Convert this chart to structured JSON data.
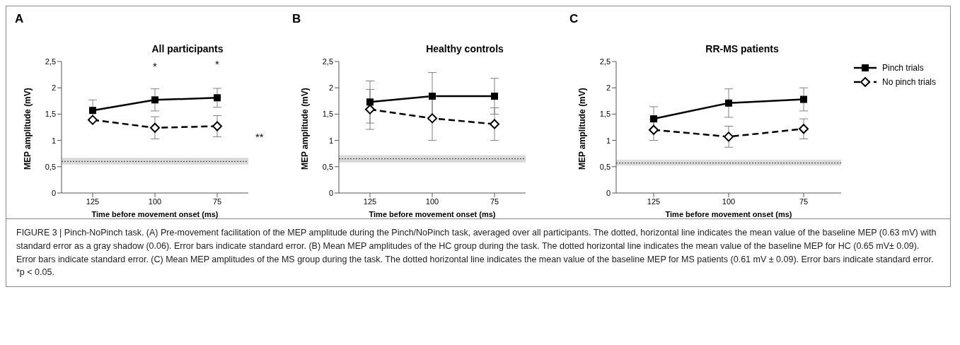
{
  "chart_data": [
    {
      "type": "line",
      "title": "All participants",
      "xlabel": "Time before movement onset (ms)",
      "ylabel": "MEP amplitude (mV)",
      "categories": [
        "125",
        "100",
        "75"
      ],
      "series": [
        {
          "color": "#000000",
          "marker": "square",
          "line_style": "solid",
          "values": [
            1.57,
            1.77,
            1.81
          ],
          "errors": [
            0.2,
            0.21,
            0.18
          ]
        },
        {
          "color": "#000000",
          "marker": "diamond",
          "line_style": "dashed",
          "values": [
            1.39,
            1.24,
            1.27
          ],
          "errors": [
            null,
            0.21,
            0.2
          ]
        }
      ],
      "ylim": [
        0,
        2.5
      ],
      "yticks": [
        {
          "value": 0,
          "label": "0"
        },
        {
          "value": 0.5,
          "label": "0,5"
        },
        {
          "value": 1,
          "label": "1"
        },
        {
          "value": 1.5,
          "label": "1,5"
        },
        {
          "value": 2,
          "label": "2"
        },
        {
          "value": 2.5,
          "label": "2,5"
        }
      ],
      "ref_lines": [
        {
          "axis": "y",
          "value": 0.6,
          "line_style": "dotted",
          "color": "#333333"
        }
      ],
      "bands": [
        {
          "axis": "y",
          "from": 0.54,
          "to": 0.67,
          "color": "#d9d9d9"
        }
      ],
      "annotations": [
        "A",
        {
          "text": "*",
          "x": "100",
          "y": 1.77
        },
        {
          "text": "*",
          "x": "75",
          "y": 1.81
        },
        "**"
      ]
    },
    {
      "type": "line",
      "title": "Healthy controls",
      "xlabel": "Time before movement onset (ms)",
      "ylabel": "MEP amplitude (mV)",
      "categories": [
        "125",
        "100",
        "75"
      ],
      "series": [
        {
          "color": "#000000",
          "marker": "square",
          "line_style": "solid",
          "values": [
            1.73,
            1.84,
            1.84
          ],
          "errors": [
            0.4,
            0.45,
            0.34
          ]
        },
        {
          "color": "#000000",
          "marker": "diamond",
          "line_style": "dashed",
          "values": [
            1.59,
            1.42,
            1.31
          ],
          "errors": [
            0.38,
            0.42,
            0.31
          ]
        }
      ],
      "ylim": [
        0,
        2.5
      ],
      "yticks": [
        {
          "value": 0,
          "label": "0"
        },
        {
          "value": 0.5,
          "label": "0,5"
        },
        {
          "value": 1,
          "label": "1"
        },
        {
          "value": 1.5,
          "label": "1,5"
        },
        {
          "value": 2,
          "label": "2"
        },
        {
          "value": 2.5,
          "label": "2,5"
        }
      ],
      "ref_lines": [
        {
          "axis": "y",
          "value": 0.65,
          "line_style": "dotted",
          "color": "#333333"
        }
      ],
      "bands": [
        {
          "axis": "y",
          "from": 0.58,
          "to": 0.72,
          "color": "#d9d9d9"
        }
      ],
      "annotations": [
        "B"
      ]
    },
    {
      "type": "line",
      "title": "RR-MS patients",
      "xlabel": "Time before movement onset (ms)",
      "ylabel": "MEP amplitude (mV)",
      "categories": [
        "125",
        "100",
        "75"
      ],
      "series": [
        {
          "name": "Pinch trials",
          "color": "#000000",
          "marker": "square",
          "line_style": "solid",
          "values": [
            1.41,
            1.71,
            1.78
          ],
          "errors": [
            0.23,
            0.27,
            0.22
          ]
        },
        {
          "name": "No pinch trials",
          "color": "#000000",
          "marker": "diamond",
          "line_style": "dashed",
          "values": [
            1.2,
            1.07,
            1.22
          ],
          "errors": [
            0.2,
            0.2,
            0.19
          ]
        }
      ],
      "ylim": [
        0,
        2.5
      ],
      "yticks": [
        {
          "value": 0,
          "label": "0"
        },
        {
          "value": 0.5,
          "label": "0,5"
        },
        {
          "value": 1,
          "label": "1"
        },
        {
          "value": 1.5,
          "label": "1,5"
        },
        {
          "value": 2,
          "label": "2"
        },
        {
          "value": 2.5,
          "label": "2,5"
        }
      ],
      "ref_lines": [
        {
          "axis": "y",
          "value": 0.57,
          "line_style": "dotted",
          "color": "#333333"
        }
      ],
      "bands": [
        {
          "axis": "y",
          "from": 0.52,
          "to": 0.63,
          "color": "#d9d9d9"
        }
      ],
      "legend": "right",
      "annotations": [
        "C",
        "FIGURE 3 | Pinch-NoPinch task. (A) Pre-movement facilitation of the MEP amplitude during the Pinch/NoPinch task, averaged over all participants. The dotted, horizontal line indicates the mean value of the baseline MEP (0.63 mV) with standard error as a gray shadow (0.06). Error bars indicate standard error. (B) Mean MEP amplitudes of the HC group during the task. The dotted horizontal line indicates the mean value of the baseline MEP for HC (0.65 mV± 0.09). Error bars indicate standard error. (C) Mean MEP amplitudes of the MS group during the task. The dotted horizontal line indicates the mean value of the baseline MEP for MS patients (0.61 mV ± 0.09). Error bars indicate standard error. *p < 0.05."
      ]
    }
  ]
}
